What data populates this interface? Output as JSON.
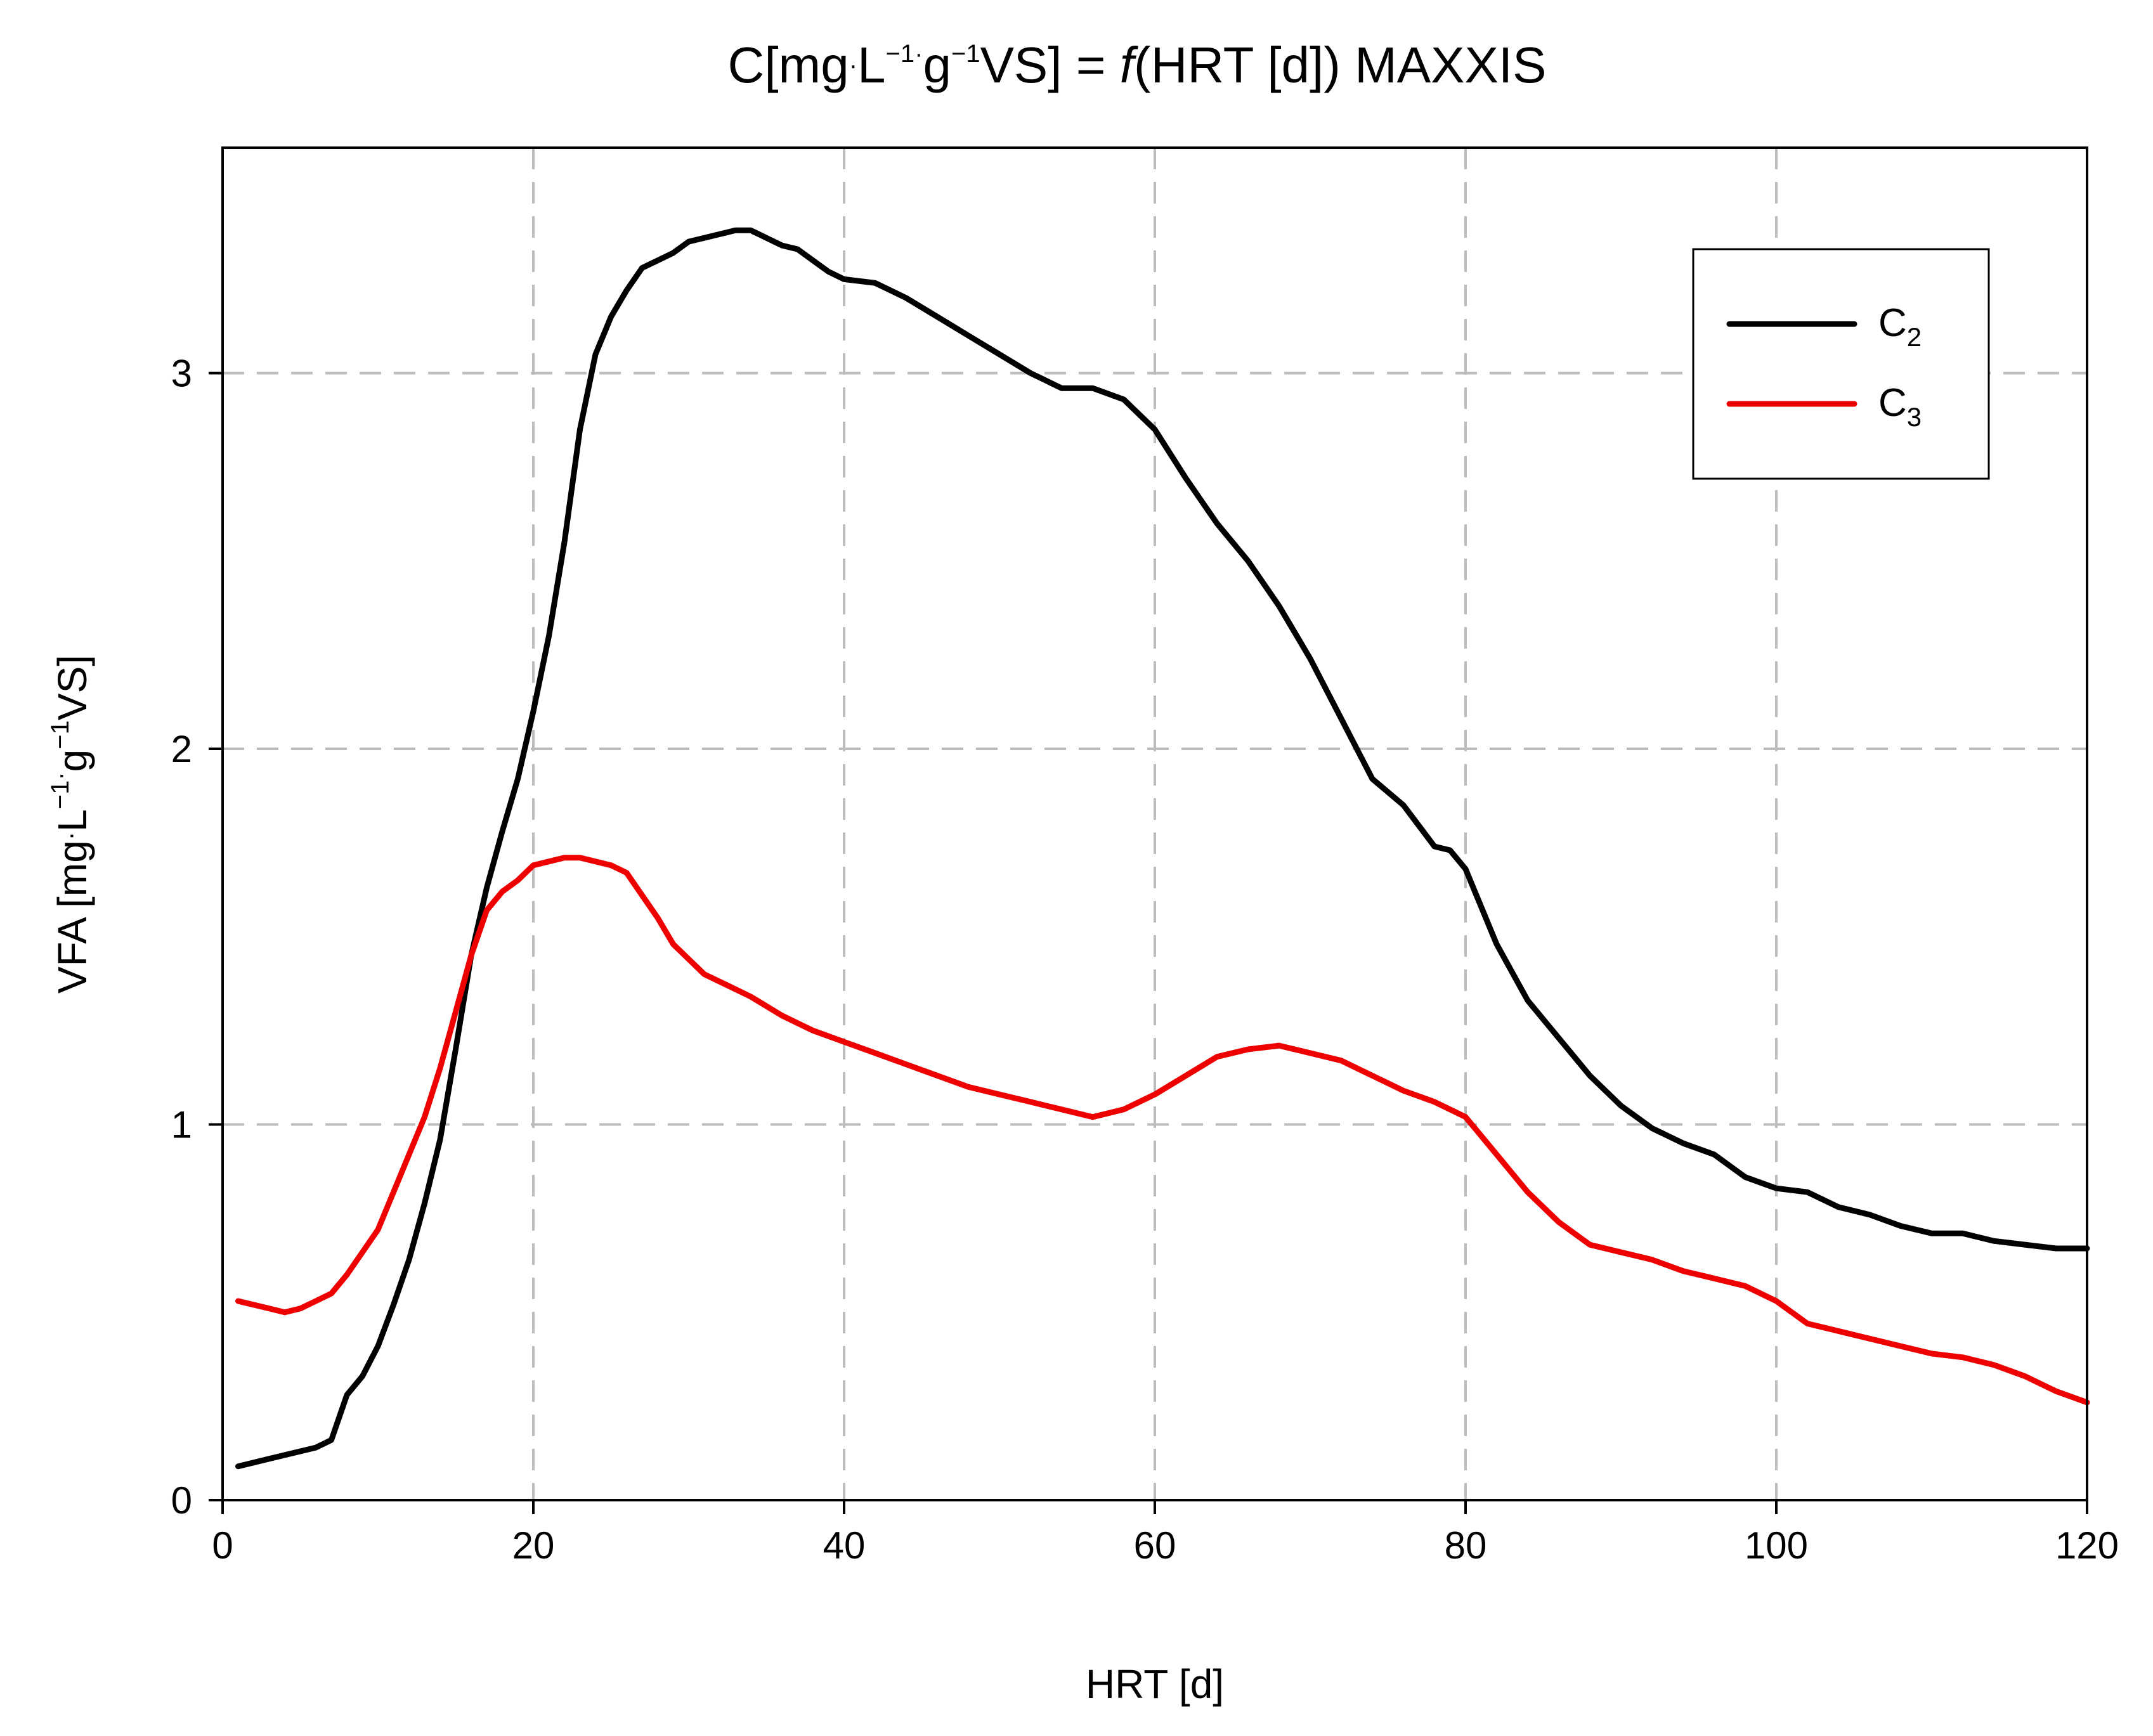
{
  "chart_data": {
    "type": "line",
    "title": {
      "pre": "C[mg",
      "dot1": "·",
      "L": "L",
      "exp1": "−1",
      "dot2": "·",
      "g": "g",
      "exp2": "−1",
      "vs_eq": "VS] = ",
      "f": "f",
      "post": "(HRT [d]) MAXXIS"
    },
    "xlabel": "HRT [d]",
    "ylabel": {
      "pre": "VFA [mg",
      "dot1": "·",
      "L": "L",
      "exp1": "−1",
      "dot2": "·",
      "g": "g",
      "exp2": "−1",
      "post": "VS]"
    },
    "xlim": [
      0,
      120
    ],
    "ylim": [
      0,
      3.6
    ],
    "x_ticks": [
      0,
      20,
      40,
      60,
      80,
      100,
      120
    ],
    "x_tick_labels": [
      "0",
      "20",
      "40",
      "60",
      "80",
      "100",
      "120"
    ],
    "y_ticks": [
      0,
      1,
      2,
      3
    ],
    "y_tick_labels": [
      "0",
      "1",
      "2",
      "3"
    ],
    "grid": true,
    "legend_position": "top-right",
    "series": [
      {
        "name": "C2",
        "label_base": "C",
        "label_sub": "2",
        "color": "#000000",
        "x": [
          1,
          2,
          3,
          4,
          5,
          6,
          7,
          8,
          9,
          10,
          11,
          12,
          13,
          14,
          15,
          16,
          17,
          18,
          19,
          20,
          21,
          22,
          23,
          24,
          25,
          26,
          27,
          28,
          29,
          30,
          31,
          32,
          33,
          34,
          35,
          36,
          37,
          38,
          39,
          40,
          42,
          44,
          46,
          48,
          50,
          52,
          54,
          56,
          58,
          60,
          62,
          64,
          66,
          68,
          70,
          72,
          74,
          76,
          78,
          79,
          80,
          82,
          84,
          86,
          88,
          90,
          92,
          94,
          96,
          98,
          100,
          102,
          104,
          106,
          108,
          110,
          112,
          114,
          116,
          118,
          120
        ],
        "y": [
          0.09,
          0.1,
          0.11,
          0.12,
          0.13,
          0.14,
          0.16,
          0.28,
          0.33,
          0.41,
          0.52,
          0.64,
          0.79,
          0.96,
          1.2,
          1.45,
          1.63,
          1.78,
          1.92,
          2.1,
          2.3,
          2.55,
          2.85,
          3.05,
          3.15,
          3.22,
          3.28,
          3.3,
          3.32,
          3.35,
          3.36,
          3.37,
          3.38,
          3.38,
          3.36,
          3.34,
          3.33,
          3.3,
          3.27,
          3.25,
          3.24,
          3.2,
          3.15,
          3.1,
          3.05,
          3.0,
          2.96,
          2.96,
          2.93,
          2.85,
          2.72,
          2.6,
          2.5,
          2.38,
          2.24,
          2.08,
          1.92,
          1.85,
          1.74,
          1.73,
          1.68,
          1.48,
          1.33,
          1.23,
          1.13,
          1.05,
          0.99,
          0.95,
          0.92,
          0.86,
          0.83,
          0.82,
          0.78,
          0.76,
          0.73,
          0.71,
          0.71,
          0.69,
          0.68,
          0.67,
          0.67
        ]
      },
      {
        "name": "C3",
        "label_base": "C",
        "label_sub": "3",
        "color": "#ee0000",
        "x": [
          1,
          2,
          3,
          4,
          5,
          6,
          7,
          8,
          9,
          10,
          11,
          12,
          13,
          14,
          15,
          16,
          17,
          18,
          19,
          20,
          21,
          22,
          23,
          24,
          25,
          26,
          27,
          28,
          29,
          30,
          31,
          32,
          34,
          36,
          38,
          40,
          42,
          44,
          46,
          48,
          50,
          52,
          54,
          56,
          58,
          60,
          62,
          64,
          66,
          68,
          70,
          72,
          74,
          76,
          78,
          80,
          82,
          84,
          86,
          88,
          90,
          92,
          94,
          96,
          98,
          100,
          102,
          104,
          106,
          108,
          110,
          112,
          114,
          116,
          118,
          120
        ],
        "y": [
          0.53,
          0.52,
          0.51,
          0.5,
          0.51,
          0.53,
          0.55,
          0.6,
          0.66,
          0.72,
          0.82,
          0.92,
          1.02,
          1.15,
          1.3,
          1.45,
          1.57,
          1.62,
          1.65,
          1.69,
          1.7,
          1.71,
          1.71,
          1.7,
          1.69,
          1.67,
          1.61,
          1.55,
          1.48,
          1.44,
          1.4,
          1.38,
          1.34,
          1.29,
          1.25,
          1.22,
          1.19,
          1.16,
          1.13,
          1.1,
          1.08,
          1.06,
          1.04,
          1.02,
          1.04,
          1.08,
          1.13,
          1.18,
          1.2,
          1.21,
          1.19,
          1.17,
          1.13,
          1.09,
          1.06,
          1.02,
          0.92,
          0.82,
          0.74,
          0.68,
          0.66,
          0.64,
          0.61,
          0.59,
          0.57,
          0.53,
          0.47,
          0.45,
          0.43,
          0.41,
          0.39,
          0.38,
          0.36,
          0.33,
          0.29,
          0.26
        ]
      }
    ]
  }
}
